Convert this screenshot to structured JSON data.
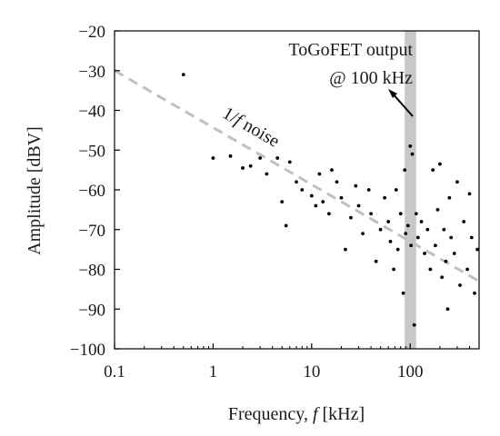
{
  "chart_data": {
    "type": "scatter",
    "title": "",
    "xlabel": {
      "pre": "Frequency, ",
      "var": "f",
      "post": " [kHz]"
    },
    "ylabel": "Amplitude [dBV]",
    "x_scale": "log",
    "xlim": [
      0.1,
      500
    ],
    "ylim": [
      -100,
      -20
    ],
    "x_ticks": [
      0.1,
      1,
      10,
      100
    ],
    "x_tick_labels": [
      "0.1",
      "1",
      "10",
      "100"
    ],
    "y_ticks": [
      -20,
      -30,
      -40,
      -50,
      -60,
      -70,
      -80,
      -90,
      -100
    ],
    "y_tick_labels": [
      "−20",
      "−30",
      "−40",
      "−50",
      "−60",
      "−70",
      "−80",
      "−90",
      "−100"
    ],
    "grid": false,
    "legend": "none",
    "noise_line": {
      "label_pre": "1/",
      "label_var": "f",
      "label_post": " noise",
      "x": [
        0.1,
        500
      ],
      "y": [
        -30,
        -83
      ],
      "color": "#c0c0c0"
    },
    "highlight_band": {
      "x_range": [
        88,
        115
      ],
      "color": "#c8c8c8"
    },
    "annotation": {
      "line1": "ToGoFET output",
      "line2": "@ 100 kHz"
    },
    "series": [
      {
        "color": "#000000",
        "points": [
          [
            0.5,
            -31
          ],
          [
            1.0,
            -52
          ],
          [
            1.5,
            -51.5
          ],
          [
            2.0,
            -54.5
          ],
          [
            2.4,
            -54
          ],
          [
            3.0,
            -52
          ],
          [
            3.5,
            -56
          ],
          [
            4.5,
            -52
          ],
          [
            5.0,
            -63
          ],
          [
            5.5,
            -69
          ],
          [
            6.0,
            -53
          ],
          [
            7.0,
            -58
          ],
          [
            8.0,
            -60
          ],
          [
            10,
            -61.5
          ],
          [
            11,
            -64
          ],
          [
            12,
            -56
          ],
          [
            13,
            -63
          ],
          [
            15,
            -66
          ],
          [
            16,
            -55
          ],
          [
            18,
            -58
          ],
          [
            20,
            -62
          ],
          [
            22,
            -75
          ],
          [
            25,
            -67
          ],
          [
            28,
            -59
          ],
          [
            30,
            -64
          ],
          [
            33,
            -71
          ],
          [
            38,
            -60
          ],
          [
            40,
            -66
          ],
          [
            45,
            -78
          ],
          [
            50,
            -70
          ],
          [
            55,
            -62
          ],
          [
            60,
            -68
          ],
          [
            63,
            -73
          ],
          [
            68,
            -80
          ],
          [
            72,
            -60
          ],
          [
            75,
            -75
          ],
          [
            80,
            -66
          ],
          [
            85,
            -86
          ],
          [
            88,
            -55
          ],
          [
            90,
            -71
          ],
          [
            95,
            -69
          ],
          [
            100,
            -49
          ],
          [
            102,
            -74
          ],
          [
            105,
            -51
          ],
          [
            110,
            -94
          ],
          [
            115,
            -66
          ],
          [
            120,
            -72
          ],
          [
            130,
            -68
          ],
          [
            140,
            -76
          ],
          [
            150,
            -70
          ],
          [
            160,
            -80
          ],
          [
            170,
            -55
          ],
          [
            180,
            -74
          ],
          [
            190,
            -65
          ],
          [
            200,
            -53.5
          ],
          [
            210,
            -82
          ],
          [
            220,
            -70
          ],
          [
            230,
            -78
          ],
          [
            240,
            -90
          ],
          [
            250,
            -62
          ],
          [
            260,
            -72
          ],
          [
            280,
            -76
          ],
          [
            300,
            -58
          ],
          [
            320,
            -84
          ],
          [
            350,
            -68
          ],
          [
            380,
            -80
          ],
          [
            400,
            -61
          ],
          [
            420,
            -72
          ],
          [
            450,
            -86
          ],
          [
            480,
            -75
          ]
        ]
      }
    ]
  }
}
